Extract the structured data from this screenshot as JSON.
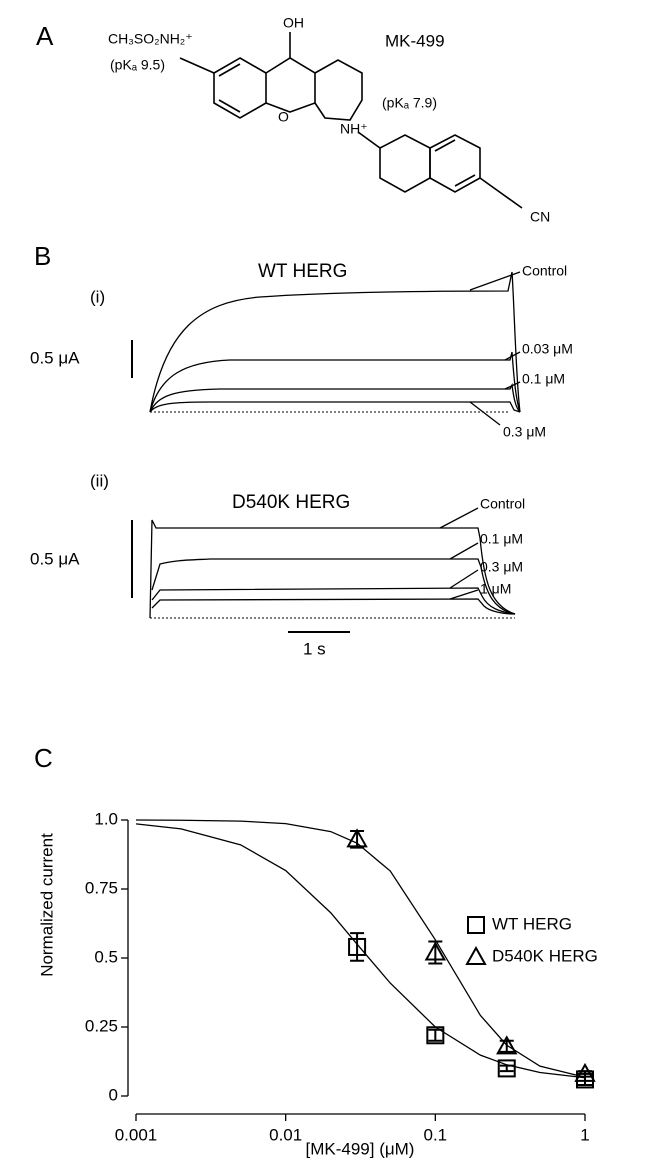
{
  "panel_a": {
    "label": "A",
    "compound": "MK-499",
    "group_left": "CH₃SO₂NH₂⁺",
    "pka_left": "(pKₐ 9.5)",
    "hydroxyl": "OH",
    "oxygen": "O",
    "amine": "NH⁺",
    "pka_right": "(pKₐ 7.9)",
    "nitrile": "CN"
  },
  "panel_b": {
    "label": "B",
    "wt": {
      "label": "(i)",
      "title": "WT HERG",
      "scale": "0.5 μA",
      "traces": [
        "Control",
        "0.03 μM",
        "0.1 μM",
        "0.3 μM"
      ]
    },
    "mutant": {
      "label": "(ii)",
      "title": "D540K HERG",
      "scale": "0.5 μA",
      "traces": [
        "Control",
        "0.1 μM",
        "0.3 μM",
        "1 μM"
      ]
    },
    "time_scale": "1 s"
  },
  "chart_data": {
    "type": "scatter",
    "label": "C",
    "xlabel": "[MK-499] (μM)",
    "ylabel": "Normalized current",
    "xscale": "log",
    "xlim": [
      0.001,
      1
    ],
    "xticks": [
      0.001,
      0.01,
      0.1,
      1
    ],
    "ylim": [
      0,
      1
    ],
    "yticks": [
      0,
      0.25,
      0.5,
      0.75,
      {
        "value": 1,
        "label": "1.0"
      }
    ],
    "legend": "upper right",
    "series": [
      {
        "name": "WT HERG",
        "marker": "square",
        "color": "#000000",
        "x": [
          0.03,
          0.1,
          0.3,
          1
        ],
        "values": [
          0.54,
          0.22,
          0.1,
          0.06
        ],
        "errors": [
          0.05,
          0.02,
          0.01,
          0.02
        ],
        "fit": {
          "x": [
            0.001,
            0.002,
            0.005,
            0.01,
            0.02,
            0.03,
            0.05,
            0.1,
            0.2,
            0.3,
            0.5,
            1
          ],
          "values": [
            0.986,
            0.968,
            0.91,
            0.817,
            0.664,
            0.55,
            0.409,
            0.25,
            0.148,
            0.113,
            0.085,
            0.066
          ]
        }
      },
      {
        "name": "D540K HERG",
        "marker": "triangle",
        "color": "#000000",
        "x": [
          0.03,
          0.1,
          0.3,
          1
        ],
        "values": [
          0.93,
          0.52,
          0.18,
          0.08
        ],
        "errors": [
          0.03,
          0.04,
          0.02,
          0.01
        ],
        "fit": {
          "x": [
            0.001,
            0.002,
            0.005,
            0.01,
            0.02,
            0.03,
            0.05,
            0.1,
            0.2,
            0.3,
            0.5,
            1
          ],
          "values": [
            1.0,
            0.999,
            0.996,
            0.987,
            0.958,
            0.916,
            0.815,
            0.566,
            0.292,
            0.184,
            0.108,
            0.068
          ]
        }
      }
    ]
  }
}
